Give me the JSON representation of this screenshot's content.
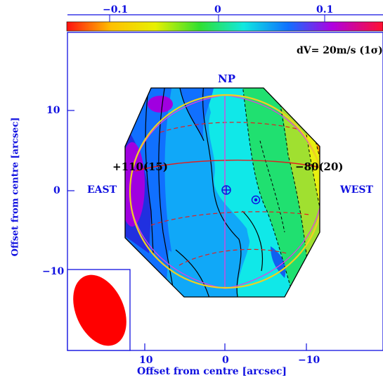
{
  "colorbar": {
    "tick_labels": [
      "−0.1",
      "0",
      "0.1"
    ]
  },
  "annotation": "dV= 20m/s (1σ)",
  "labels": {
    "np": "NP",
    "east": "EAST",
    "west": "WEST",
    "pos_value": "+110(15)",
    "neg_value": "−80(20)"
  },
  "axes": {
    "xlabel": "Offset from centre [arcsec]",
    "ylabel": "Offset from centre [arcsec]",
    "xticks": [
      "10",
      "0",
      "−10"
    ],
    "yticks": [
      "10",
      "0",
      "−10"
    ]
  },
  "colors": {
    "axis": "#1010e0",
    "beam": "#ff0000",
    "limb": "#f0d020",
    "grid": "#e02020",
    "meridian": "#e040e0"
  }
}
